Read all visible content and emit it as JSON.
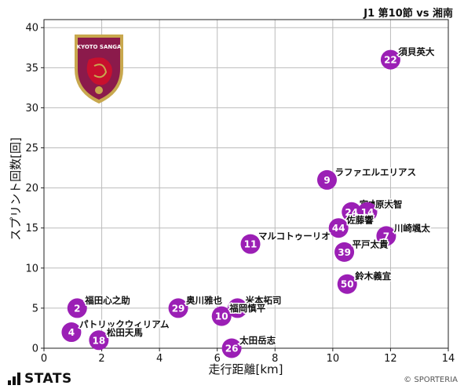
{
  "match_title": "J1 第10節 vs 湘南",
  "brand": {
    "name": "STATS",
    "copyright": "© SPORTERIA"
  },
  "crest": {
    "text": "KYOTO SANGA",
    "colors": {
      "primary": "#8b1a4b",
      "gold": "#c8a84e",
      "red": "#c8102e"
    }
  },
  "colors": {
    "point": "#9b1fb5",
    "grid": "#bbbbbb",
    "text": "#111111"
  },
  "chart_data": {
    "type": "scatter",
    "title": "",
    "xlabel": "走行距離[km]",
    "ylabel": "スプリント回数[回]",
    "xlim": [
      0,
      14
    ],
    "ylim": [
      0,
      41
    ],
    "xticks": [
      0,
      2,
      4,
      6,
      8,
      10,
      12,
      14
    ],
    "yticks": [
      0,
      5,
      10,
      15,
      20,
      25,
      30,
      35,
      40
    ],
    "grid": true,
    "points": [
      {
        "number": "22",
        "name": "須貝英大",
        "x": 12.0,
        "y": 36
      },
      {
        "number": "9",
        "name": "ラファエルエリアス",
        "x": 9.8,
        "y": 21
      },
      {
        "number": "24",
        "name": "宮本優太",
        "x": 10.65,
        "y": 17
      },
      {
        "number": "14",
        "name": "原大智",
        "x": 11.2,
        "y": 17
      },
      {
        "number": "44",
        "name": "佐藤響",
        "x": 10.2,
        "y": 15
      },
      {
        "number": "7",
        "name": "川崎颯太",
        "x": 11.85,
        "y": 14
      },
      {
        "number": "11",
        "name": "マルコトゥーリオ",
        "x": 7.15,
        "y": 13
      },
      {
        "number": "39",
        "name": "平戸太貴",
        "x": 10.4,
        "y": 12
      },
      {
        "number": "50",
        "name": "鈴木義宜",
        "x": 10.5,
        "y": 8
      },
      {
        "number": "2",
        "name": "福田心之助",
        "x": 1.15,
        "y": 5
      },
      {
        "number": "29",
        "name": "奥川雅也",
        "x": 4.65,
        "y": 5
      },
      {
        "number": "8",
        "name": "米本拓司",
        "x": 6.7,
        "y": 5
      },
      {
        "number": "10",
        "name": "福岡慎平",
        "x": 6.15,
        "y": 4
      },
      {
        "number": "4",
        "name": "パトリックウィリアム",
        "x": 0.95,
        "y": 2
      },
      {
        "number": "18",
        "name": "松田天馬",
        "x": 1.9,
        "y": 1
      },
      {
        "number": "26",
        "name": "太田岳志",
        "x": 6.5,
        "y": 0
      }
    ]
  }
}
